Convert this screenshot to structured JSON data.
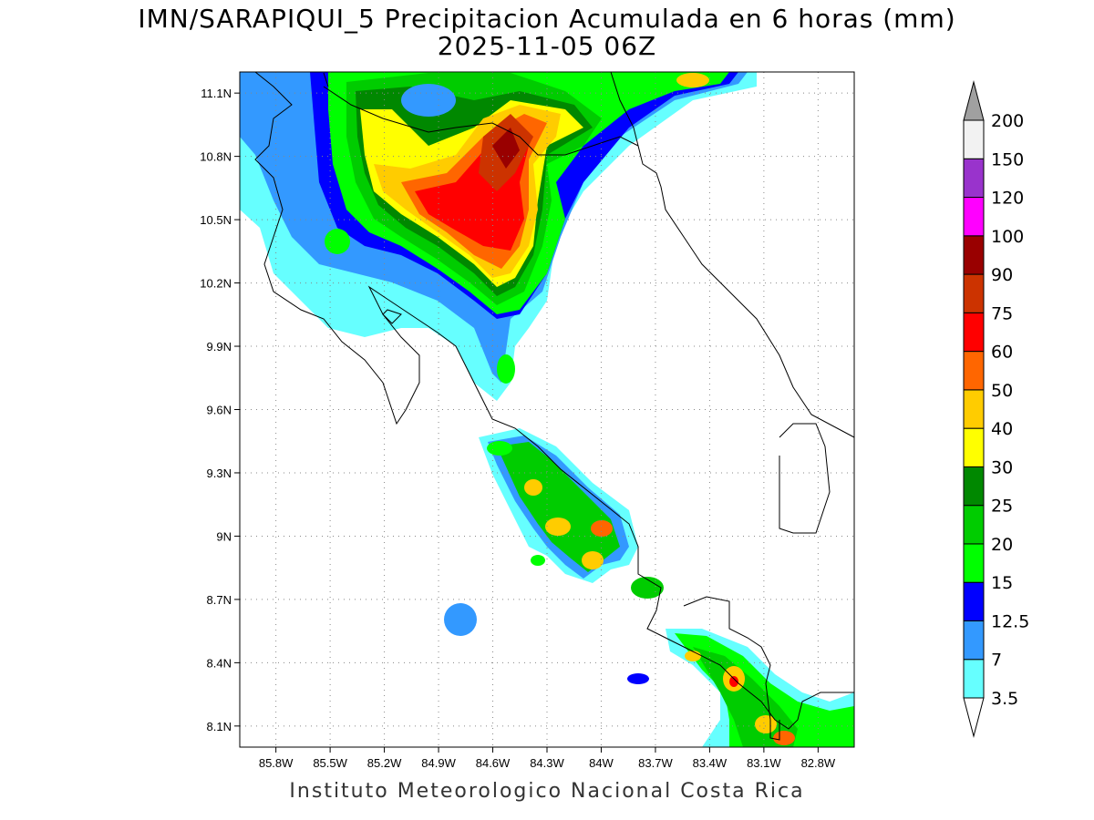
{
  "title_line1": "IMN/SARAPIQUI_5 Precipitacion Acumulada en 6 horas (mm)",
  "title_line2": "2025-11-05 06Z",
  "footer": "Instituto Meteorologico Nacional Costa Rica",
  "map": {
    "lon_range": [
      -86.0,
      -82.6
    ],
    "lat_range": [
      8.0,
      11.2
    ],
    "lon_ticks": [
      "85.8W",
      "85.5W",
      "85.2W",
      "84.9W",
      "84.6W",
      "84.3W",
      "84W",
      "83.7W",
      "83.4W",
      "83.1W",
      "82.8W"
    ],
    "lon_tick_values": [
      -85.8,
      -85.5,
      -85.2,
      -84.9,
      -84.6,
      -84.3,
      -84.0,
      -83.7,
      -83.4,
      -83.1,
      -82.8
    ],
    "lat_ticks": [
      "11.1N",
      "10.8N",
      "10.5N",
      "10.2N",
      "9.9N",
      "9.6N",
      "9.3N",
      "9N",
      "8.7N",
      "8.4N",
      "8.1N"
    ],
    "lat_tick_values": [
      11.1,
      10.8,
      10.5,
      10.2,
      9.9,
      9.6,
      9.3,
      9.0,
      8.7,
      8.4,
      8.1
    ],
    "grid": "dotted"
  },
  "colorbar": {
    "levels": [
      "3.5",
      "7",
      "12.5",
      "15",
      "20",
      "25",
      "30",
      "40",
      "50",
      "60",
      "75",
      "90",
      "100",
      "120",
      "150",
      "200"
    ],
    "colors": [
      "#ffffff",
      "#66ffff",
      "#3399ff",
      "#0000ff",
      "#00ff00",
      "#00cc00",
      "#008800",
      "#ffff00",
      "#ffcc00",
      "#ff6600",
      "#ff0000",
      "#cc3300",
      "#990000",
      "#ff00ff",
      "#9933cc",
      "#f2f2f2",
      "#a0a0a0"
    ]
  }
}
